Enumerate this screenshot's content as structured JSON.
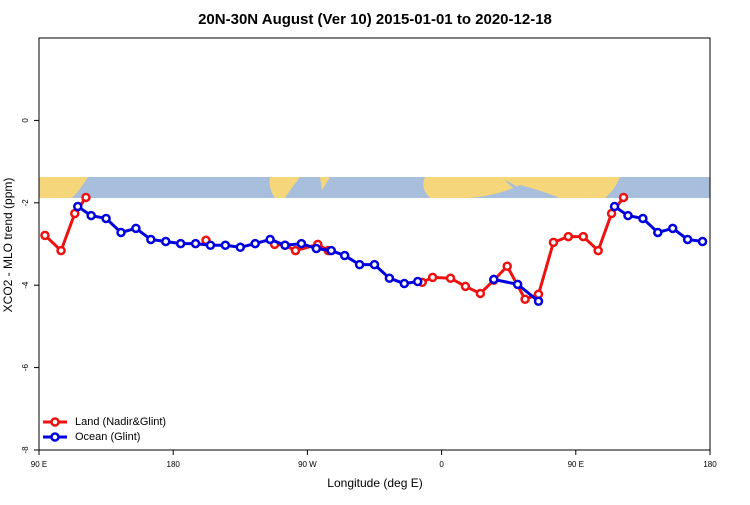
{
  "chart_data": {
    "type": "line",
    "title": "20N-30N August (Ver 10)   2015-01-01 to 2020-12-18",
    "x_label": "Longitude (deg E)",
    "y_label": "XCO2 - MLO trend (ppm)",
    "xlim": [
      90,
      540
    ],
    "xticks": [
      {
        "value": 90,
        "label": "90 E"
      },
      180,
      {
        "value": 270,
        "label": "90 W"
      },
      {
        "value": 360,
        "label": "0"
      },
      {
        "value": 450,
        "label": "90 E"
      },
      {
        "value": 540,
        "label": "180"
      }
    ],
    "ylim": [
      -8,
      2
    ],
    "yticks": [
      -8,
      -6,
      -4,
      -2,
      0
    ],
    "legend": "bottom-left",
    "series": [
      {
        "name": "Land (Nadir&Glint)",
        "color": "#ee1111",
        "x": [
          94,
          104.8,
          114,
          121.5,
          null,
          202,
          null,
          248,
          255,
          262,
          277,
          284,
          null,
          347,
          354,
          366,
          376,
          386,
          395,
          404,
          416,
          425,
          435,
          445,
          455,
          465,
          474,
          482
        ],
        "values": [
          -2.79,
          -3.16,
          -2.26,
          -1.87,
          null,
          -2.91,
          null,
          -3.01,
          -3.03,
          -3.16,
          -3.01,
          -3.16,
          null,
          -3.93,
          -3.81,
          -3.83,
          -4.03,
          -4.2,
          -3.88,
          -3.54,
          -4.34,
          -4.22,
          -2.96,
          -2.82,
          -2.82,
          -3.16,
          -2.26,
          -1.87
        ]
      },
      {
        "name": "Ocean (Glint)",
        "color": "#0000dd",
        "x": [
          116,
          125,
          135,
          145,
          155,
          165,
          175,
          185,
          195,
          205,
          215,
          225,
          235,
          245,
          255,
          266,
          276,
          286,
          295,
          305,
          315,
          325,
          335,
          344,
          null,
          395,
          411,
          425,
          null,
          476,
          485,
          495,
          505,
          515,
          525,
          535
        ],
        "values": [
          -2.09,
          -2.31,
          -2.38,
          -2.72,
          -2.62,
          -2.89,
          -2.94,
          -2.99,
          -2.99,
          -3.03,
          -3.03,
          -3.08,
          -2.99,
          -2.89,
          -3.03,
          -2.99,
          -3.11,
          -3.16,
          -3.28,
          -3.5,
          -3.5,
          -3.83,
          -3.96,
          -3.91,
          null,
          -3.86,
          -3.98,
          -4.39,
          null,
          -2.09,
          -2.31,
          -2.38,
          -2.72,
          -2.62,
          -2.89,
          -2.94
        ]
      }
    ]
  }
}
